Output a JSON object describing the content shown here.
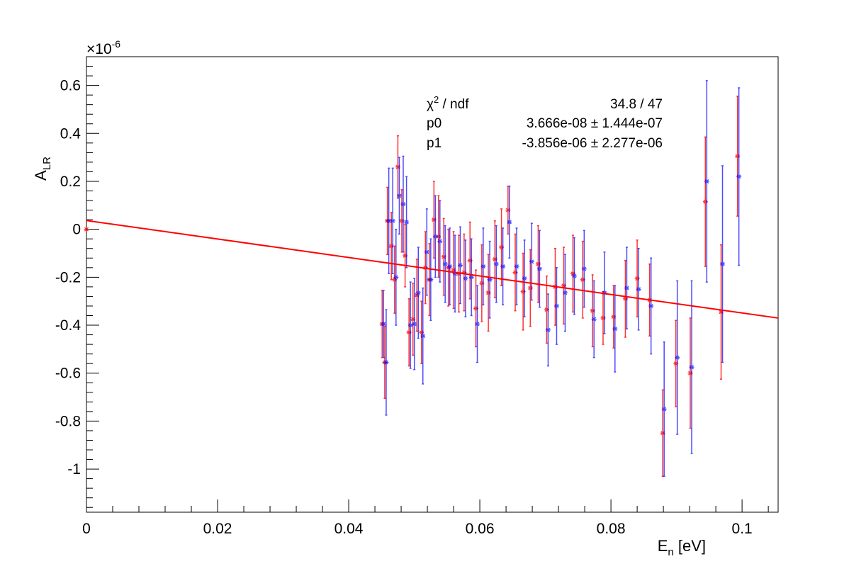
{
  "chart_data": {
    "type": "scatter",
    "xlabel": "E",
    "xlabel_sub": "n",
    "xlabel_unit": " [eV]",
    "ylabel": "A",
    "ylabel_sub": "LR",
    "y_exponent": "×10",
    "y_exponent_power": "-6",
    "xlim": [
      0,
      0.1055
    ],
    "ylim": [
      -1.18,
      0.72
    ],
    "y_scale_factor": 1e-06,
    "x_ticks": [
      {
        "value": 0,
        "label": "0"
      },
      {
        "value": 0.02,
        "label": "0.02"
      },
      {
        "value": 0.04,
        "label": "0.04"
      },
      {
        "value": 0.06,
        "label": "0.06"
      },
      {
        "value": 0.08,
        "label": "0.08"
      },
      {
        "value": 0.1,
        "label": "0.1"
      }
    ],
    "y_ticks": [
      {
        "value": 0.6,
        "label": "0.6"
      },
      {
        "value": 0.4,
        "label": "0.4"
      },
      {
        "value": 0.2,
        "label": "0.2"
      },
      {
        "value": 0,
        "label": "0"
      },
      {
        "value": -0.2,
        "label": "-0.2"
      },
      {
        "value": -0.4,
        "label": "-0.4"
      },
      {
        "value": -0.6,
        "label": "-0.6"
      },
      {
        "value": -0.8,
        "label": "-0.8"
      },
      {
        "value": -1,
        "label": "-1"
      }
    ],
    "fit": {
      "color": "#ff0000",
      "p0": 3.666e-08,
      "p1": -3.856e-06,
      "x_range": [
        0,
        0.1055
      ]
    },
    "stats": {
      "rows": [
        {
          "name": "χ",
          "name_sup": "2",
          "name_rest": " / ndf",
          "value": "34.8 / 47"
        },
        {
          "name": "p0",
          "name_sup": "",
          "name_rest": "",
          "value": "3.666e-08 ± 1.444e-07"
        },
        {
          "name": "p1",
          "name_sup": "",
          "name_rest": "",
          "value": "-3.856e-06 ± 2.277e-06"
        }
      ]
    },
    "series": [
      {
        "color": "#ff0000",
        "points": [
          [
            0.0,
            0.0,
            0.0
          ],
          [
            0.0451,
            -0.395,
            0.14
          ],
          [
            0.0455,
            -0.555,
            0.15
          ],
          [
            0.0459,
            0.035,
            0.14
          ],
          [
            0.0465,
            -0.07,
            0.14
          ],
          [
            0.047,
            -0.21,
            0.14
          ],
          [
            0.0475,
            0.26,
            0.13
          ],
          [
            0.0481,
            0.035,
            0.13
          ],
          [
            0.0486,
            -0.11,
            0.13
          ],
          [
            0.0492,
            -0.43,
            0.14
          ],
          [
            0.0498,
            -0.375,
            0.15
          ],
          [
            0.0504,
            -0.275,
            0.15
          ],
          [
            0.0511,
            -0.43,
            0.13
          ],
          [
            0.0517,
            -0.16,
            0.15
          ],
          [
            0.0523,
            -0.21,
            0.15
          ],
          [
            0.053,
            0.04,
            0.16
          ],
          [
            0.0537,
            -0.03,
            0.17
          ],
          [
            0.0545,
            -0.115,
            0.16
          ],
          [
            0.0552,
            -0.16,
            0.16
          ],
          [
            0.056,
            -0.17,
            0.16
          ],
          [
            0.0568,
            -0.185,
            0.16
          ],
          [
            0.0576,
            -0.18,
            0.16
          ],
          [
            0.0585,
            -0.13,
            0.16
          ],
          [
            0.0594,
            -0.33,
            0.16
          ],
          [
            0.0603,
            -0.225,
            0.16
          ],
          [
            0.0613,
            -0.265,
            0.16
          ],
          [
            0.0623,
            -0.125,
            0.16
          ],
          [
            0.0633,
            -0.075,
            0.16
          ],
          [
            0.0643,
            0.08,
            0.1
          ],
          [
            0.0654,
            -0.18,
            0.16
          ],
          [
            0.0666,
            -0.26,
            0.16
          ],
          [
            0.0677,
            -0.245,
            0.16
          ],
          [
            0.0689,
            -0.145,
            0.16
          ],
          [
            0.0702,
            -0.335,
            0.14
          ],
          [
            0.0715,
            -0.24,
            0.16
          ],
          [
            0.0728,
            -0.235,
            0.16
          ],
          [
            0.0742,
            -0.185,
            0.16
          ],
          [
            0.0757,
            -0.21,
            0.16
          ],
          [
            0.0772,
            -0.34,
            0.15
          ],
          [
            0.0788,
            -0.37,
            0.11
          ],
          [
            0.0804,
            -0.365,
            0.13
          ],
          [
            0.0822,
            -0.29,
            0.16
          ],
          [
            0.084,
            -0.205,
            0.16
          ],
          [
            0.0859,
            -0.295,
            0.15
          ],
          [
            0.0879,
            -0.85,
            0.18
          ],
          [
            0.0899,
            -0.56,
            0.18
          ],
          [
            0.0921,
            -0.6,
            0.23
          ],
          [
            0.0944,
            0.115,
            0.27
          ],
          [
            0.0968,
            -0.345,
            0.28
          ],
          [
            0.0993,
            0.305,
            0.25
          ]
        ]
      },
      {
        "color": "#0000ff",
        "points": [
          [
            0.0451,
            -0.395,
            0.14
          ],
          [
            0.0455,
            -0.555,
            0.22
          ],
          [
            0.0459,
            0.035,
            0.22
          ],
          [
            0.0465,
            0.035,
            0.22
          ],
          [
            0.047,
            -0.2,
            0.2
          ],
          [
            0.0475,
            0.14,
            0.16
          ],
          [
            0.0481,
            0.105,
            0.2
          ],
          [
            0.0486,
            0.03,
            0.19
          ],
          [
            0.0492,
            -0.4,
            0.18
          ],
          [
            0.0498,
            -0.395,
            0.19
          ],
          [
            0.0504,
            -0.265,
            0.19
          ],
          [
            0.0511,
            -0.445,
            0.2
          ],
          [
            0.0517,
            -0.095,
            0.18
          ],
          [
            0.0523,
            -0.21,
            0.17
          ],
          [
            0.053,
            -0.03,
            0.17
          ],
          [
            0.0537,
            -0.05,
            0.17
          ],
          [
            0.0545,
            -0.145,
            0.16
          ],
          [
            0.0552,
            -0.155,
            0.16
          ],
          [
            0.056,
            -0.185,
            0.16
          ],
          [
            0.0568,
            -0.15,
            0.16
          ],
          [
            0.0576,
            -0.205,
            0.16
          ],
          [
            0.0585,
            -0.2,
            0.16
          ],
          [
            0.0594,
            -0.395,
            0.16
          ],
          [
            0.0603,
            -0.155,
            0.16
          ],
          [
            0.0613,
            -0.21,
            0.16
          ],
          [
            0.0623,
            -0.145,
            0.16
          ],
          [
            0.0633,
            -0.155,
            0.16
          ],
          [
            0.0643,
            0.03,
            0.15
          ],
          [
            0.0654,
            -0.155,
            0.16
          ],
          [
            0.0666,
            -0.205,
            0.16
          ],
          [
            0.0677,
            -0.135,
            0.16
          ],
          [
            0.0689,
            -0.165,
            0.16
          ],
          [
            0.0702,
            -0.42,
            0.15
          ],
          [
            0.0715,
            -0.32,
            0.16
          ],
          [
            0.0728,
            -0.265,
            0.16
          ],
          [
            0.0742,
            -0.195,
            0.16
          ],
          [
            0.0757,
            -0.165,
            0.16
          ],
          [
            0.0772,
            -0.375,
            0.16
          ],
          [
            0.0788,
            -0.265,
            0.17
          ],
          [
            0.0804,
            -0.415,
            0.18
          ],
          [
            0.0822,
            -0.245,
            0.17
          ],
          [
            0.084,
            -0.25,
            0.17
          ],
          [
            0.0859,
            -0.32,
            0.2
          ],
          [
            0.0879,
            -0.75,
            0.28
          ],
          [
            0.0899,
            -0.535,
            0.32
          ],
          [
            0.0921,
            -0.575,
            0.36
          ],
          [
            0.0944,
            0.2,
            0.42
          ],
          [
            0.0968,
            -0.145,
            0.41
          ],
          [
            0.0993,
            0.22,
            0.37
          ]
        ]
      }
    ]
  }
}
